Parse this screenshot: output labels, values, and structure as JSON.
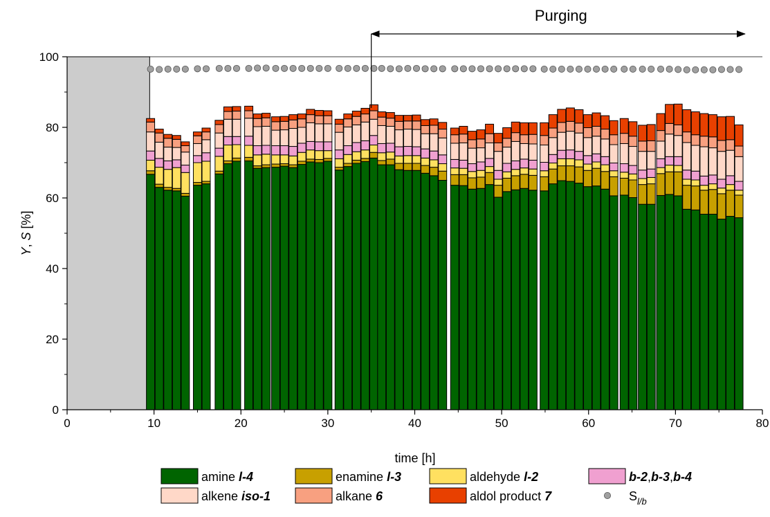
{
  "chart_data": {
    "type": "bar",
    "stacked": true,
    "xlabel": "time [h]",
    "ylabel_parts": [
      "Y",
      ", ",
      "S",
      " [%]"
    ],
    "xlim": [
      0,
      80
    ],
    "ylim": [
      0,
      100
    ],
    "x_ticks": [
      0,
      10,
      20,
      30,
      40,
      50,
      60,
      70,
      80
    ],
    "y_ticks": [
      0,
      20,
      40,
      60,
      80,
      100
    ],
    "grid": false,
    "reference_line": 100,
    "startup_region": {
      "x_start": 0,
      "x_end": 9.5,
      "y_top": 100,
      "color": "#cccccc"
    },
    "annotation": {
      "label": "Purging",
      "x_start": 35,
      "x_end": 78
    },
    "x": [
      9.6,
      10.6,
      11.6,
      12.6,
      13.6,
      15,
      16,
      17.5,
      18.5,
      19.5,
      20.9,
      21.9,
      22.9,
      24,
      25,
      26,
      27,
      28,
      29,
      30,
      31.3,
      32.3,
      33.3,
      34.3,
      35.3,
      36.2,
      37.2,
      38.2,
      39.2,
      40.2,
      41.2,
      42.2,
      43.2,
      44.6,
      45.6,
      46.6,
      47.6,
      48.6,
      49.6,
      50.6,
      51.6,
      52.6,
      53.6,
      54.9,
      55.9,
      56.9,
      57.9,
      58.9,
      59.9,
      60.9,
      61.9,
      62.9,
      64.1,
      65.1,
      66.2,
      67.2,
      68.3,
      69.3,
      70.3,
      71.3,
      72.3,
      73.3,
      74.3,
      75.3,
      76.3,
      77.3
    ],
    "bar_width_h": 0.95,
    "series": [
      {
        "name": "amine l-4",
        "name_parts": [
          [
            "amine ",
            false
          ],
          [
            "l-4",
            true
          ]
        ],
        "color": "#006400",
        "values": [
          66.7,
          63.0,
          62.2,
          62.0,
          60.5,
          63.6,
          64.0,
          66.8,
          69.7,
          70.4,
          70.5,
          68.4,
          68.6,
          68.7,
          69.0,
          68.6,
          69.5,
          70.2,
          70.0,
          70.4,
          67.9,
          68.9,
          69.8,
          70.3,
          71.3,
          69.4,
          69.4,
          68.0,
          67.8,
          67.8,
          67.0,
          66.3,
          65.0,
          63.6,
          63.5,
          62.5,
          62.7,
          63.8,
          60.2,
          61.8,
          62.3,
          62.7,
          62.2,
          62.0,
          64.0,
          64.9,
          64.7,
          64.2,
          63.2,
          63.4,
          62.5,
          60.6,
          60.8,
          60.1,
          58.2,
          58.2,
          60.7,
          61.0,
          60.6,
          56.8,
          56.6,
          55.4,
          55.4,
          54.0,
          54.8,
          54.4
        ]
      },
      {
        "name": "enamine l-3",
        "name_parts": [
          [
            "enamine ",
            false
          ],
          [
            "l-3",
            true
          ]
        ],
        "color": "#c8a000",
        "values": [
          1.0,
          0.9,
          0.8,
          0.7,
          0.8,
          0.8,
          0.7,
          0.8,
          0.8,
          0.9,
          1.0,
          0.7,
          0.8,
          0.9,
          0.7,
          0.8,
          0.9,
          0.8,
          0.9,
          0.8,
          0.8,
          0.9,
          0.9,
          0.9,
          1.6,
          1.2,
          1.6,
          1.8,
          2.0,
          2.0,
          2.2,
          2.4,
          2.6,
          3.0,
          3.1,
          3.2,
          3.2,
          3.4,
          3.4,
          3.8,
          4.0,
          4.0,
          4.2,
          4.0,
          4.2,
          4.2,
          4.4,
          4.6,
          4.6,
          5.0,
          5.0,
          5.4,
          4.8,
          5.0,
          5.6,
          5.8,
          6.2,
          6.4,
          6.8,
          6.8,
          6.8,
          6.8,
          7.0,
          7.2,
          7.4,
          6.4
        ]
      },
      {
        "name": "aldehyde l-2",
        "name_parts": [
          [
            "aldehyde ",
            false
          ],
          [
            "l-2",
            true
          ]
        ],
        "color": "#ffe060",
        "values": [
          3.0,
          4.8,
          5.1,
          5.9,
          5.9,
          5.6,
          5.7,
          4.2,
          4.5,
          3.8,
          3.4,
          3.1,
          3.0,
          2.6,
          2.5,
          2.5,
          2.5,
          2.6,
          2.5,
          2.2,
          2.4,
          2.5,
          2.4,
          2.4,
          2.1,
          2.2,
          2.0,
          2.1,
          2.2,
          2.2,
          2.1,
          2.1,
          2.1,
          1.9,
          1.8,
          1.8,
          1.9,
          1.7,
          1.7,
          1.8,
          1.8,
          1.8,
          1.8,
          1.7,
          1.7,
          2.0,
          2.0,
          2.0,
          1.8,
          1.8,
          1.9,
          1.7,
          1.7,
          1.7,
          1.7,
          1.8,
          1.7,
          1.9,
          1.8,
          1.7,
          1.7,
          1.4,
          1.6,
          1.6,
          1.6,
          1.4
        ]
      },
      {
        "name": "b-2,b-3,b-4",
        "name_parts": [
          [
            "b-2",
            true
          ],
          [
            ",",
            false
          ],
          [
            "b-3",
            true
          ],
          [
            ",",
            false
          ],
          [
            "b-4",
            true
          ]
        ],
        "color": "#f0a0d0",
        "values": [
          2.6,
          2.5,
          2.4,
          2.2,
          2.1,
          2.0,
          2.4,
          2.3,
          2.4,
          2.3,
          2.6,
          2.6,
          2.5,
          2.6,
          2.6,
          2.7,
          2.6,
          2.4,
          2.5,
          2.5,
          2.5,
          2.5,
          2.6,
          2.6,
          2.7,
          2.6,
          2.5,
          2.6,
          2.6,
          2.5,
          2.6,
          2.5,
          2.5,
          2.4,
          2.3,
          2.2,
          2.4,
          2.3,
          2.5,
          2.4,
          2.4,
          2.5,
          2.5,
          2.4,
          2.4,
          2.4,
          2.5,
          2.4,
          2.4,
          2.3,
          2.3,
          2.2,
          2.4,
          2.4,
          2.4,
          2.4,
          2.5,
          2.4,
          2.5,
          2.6,
          2.5,
          2.6,
          2.5,
          2.5,
          2.5,
          2.5
        ]
      },
      {
        "name": "alkene iso-1",
        "name_parts": [
          [
            "alkene ",
            false
          ],
          [
            "iso-1",
            true
          ]
        ],
        "color": "#ffd8c8",
        "values": [
          5.4,
          4.6,
          3.9,
          3.5,
          3.7,
          3.4,
          3.7,
          4.3,
          4.9,
          4.9,
          5.1,
          5.4,
          5.4,
          4.4,
          4.5,
          5.1,
          4.5,
          5.3,
          5.1,
          5.1,
          5.0,
          5.3,
          5.0,
          5.3,
          4.6,
          5.1,
          4.8,
          4.8,
          4.9,
          4.9,
          4.3,
          4.9,
          4.8,
          4.6,
          4.9,
          4.4,
          4.0,
          4.4,
          5.4,
          4.6,
          5.5,
          4.4,
          4.6,
          4.9,
          4.8,
          5.1,
          5.3,
          5.2,
          5.1,
          5.0,
          5.0,
          5.2,
          5.7,
          5.4,
          5.3,
          5.0,
          5.0,
          6.4,
          6.0,
          7.8,
          7.3,
          8.3,
          7.7,
          7.9,
          7.2,
          7.0
        ]
      },
      {
        "name": "alkane 6",
        "name_parts": [
          [
            "alkane ",
            false
          ],
          [
            "6",
            true
          ]
        ],
        "color": "#f8a080",
        "values": [
          2.8,
          2.6,
          2.5,
          2.3,
          1.8,
          2.2,
          2.2,
          2.4,
          2.2,
          2.3,
          2.1,
          2.3,
          2.4,
          2.4,
          2.4,
          2.4,
          2.4,
          2.3,
          2.3,
          2.3,
          2.3,
          2.3,
          2.4,
          2.3,
          2.4,
          2.4,
          2.3,
          2.4,
          2.3,
          2.4,
          2.3,
          2.4,
          2.5,
          2.4,
          2.5,
          2.4,
          2.5,
          2.6,
          2.4,
          2.5,
          2.5,
          2.5,
          2.7,
          2.7,
          2.7,
          2.8,
          2.8,
          2.8,
          2.8,
          2.8,
          2.8,
          2.8,
          2.9,
          2.9,
          2.9,
          3.0,
          3.0,
          3.0,
          3.0,
          3.0,
          3.0,
          3.0,
          3.1,
          3.1,
          3.0,
          3.0
        ]
      },
      {
        "name": "aldol product 7",
        "name_parts": [
          [
            "aldol product ",
            false
          ],
          [
            "7",
            true
          ]
        ],
        "color": "#e84000",
        "values": [
          1.0,
          1.1,
          1.1,
          1.1,
          1.1,
          1.1,
          1.1,
          1.2,
          1.3,
          1.3,
          1.3,
          1.3,
          1.3,
          1.4,
          1.4,
          1.5,
          1.4,
          1.5,
          1.5,
          1.4,
          1.4,
          1.4,
          1.5,
          1.6,
          1.7,
          1.5,
          1.6,
          1.7,
          1.6,
          1.7,
          1.7,
          1.8,
          1.9,
          1.9,
          2.2,
          2.4,
          2.6,
          2.7,
          2.7,
          3.0,
          3.0,
          3.4,
          3.3,
          3.6,
          3.8,
          3.7,
          3.8,
          3.8,
          3.7,
          3.8,
          3.8,
          4.0,
          4.2,
          4.1,
          4.5,
          4.6,
          4.8,
          5.4,
          5.9,
          6.3,
          6.5,
          6.4,
          6.3,
          6.7,
          6.6,
          6.0
        ]
      }
    ],
    "selectivity": {
      "name": "S l/b",
      "name_main": "S",
      "name_sub": "l/b",
      "color": "#a0a0a0",
      "x": [
        9.6,
        10.6,
        11.6,
        12.6,
        13.6,
        15,
        16,
        17.5,
        18.5,
        19.5,
        20.9,
        21.9,
        22.9,
        24,
        25,
        26,
        27,
        28,
        29,
        30,
        31.3,
        32.3,
        33.3,
        34.3,
        35.3,
        36.2,
        37.2,
        38.2,
        39.2,
        40.2,
        41.2,
        42.2,
        43.2,
        44.6,
        45.6,
        46.6,
        47.6,
        48.6,
        49.6,
        50.6,
        51.6,
        52.6,
        53.6,
        54.9,
        55.9,
        56.9,
        57.9,
        58.9,
        59.9,
        60.9,
        61.9,
        62.9,
        64.1,
        65.1,
        66.2,
        67.2,
        68.3,
        69.3,
        70.3,
        71.3,
        72.3,
        73.3,
        74.3,
        75.3,
        76.3,
        77.3
      ],
      "values": [
        96.5,
        96.4,
        96.5,
        96.5,
        96.5,
        96.6,
        96.6,
        96.7,
        96.7,
        96.7,
        96.7,
        96.8,
        96.8,
        96.7,
        96.7,
        96.7,
        96.7,
        96.7,
        96.7,
        96.7,
        96.7,
        96.7,
        96.7,
        96.7,
        96.7,
        96.7,
        96.6,
        96.6,
        96.7,
        96.7,
        96.6,
        96.6,
        96.6,
        96.6,
        96.6,
        96.6,
        96.6,
        96.6,
        96.6,
        96.6,
        96.6,
        96.6,
        96.6,
        96.5,
        96.5,
        96.5,
        96.5,
        96.5,
        96.5,
        96.5,
        96.5,
        96.5,
        96.5,
        96.5,
        96.5,
        96.5,
        96.5,
        96.5,
        96.4,
        96.3,
        96.3,
        96.3,
        96.3,
        96.4,
        96.4,
        96.4
      ]
    }
  }
}
